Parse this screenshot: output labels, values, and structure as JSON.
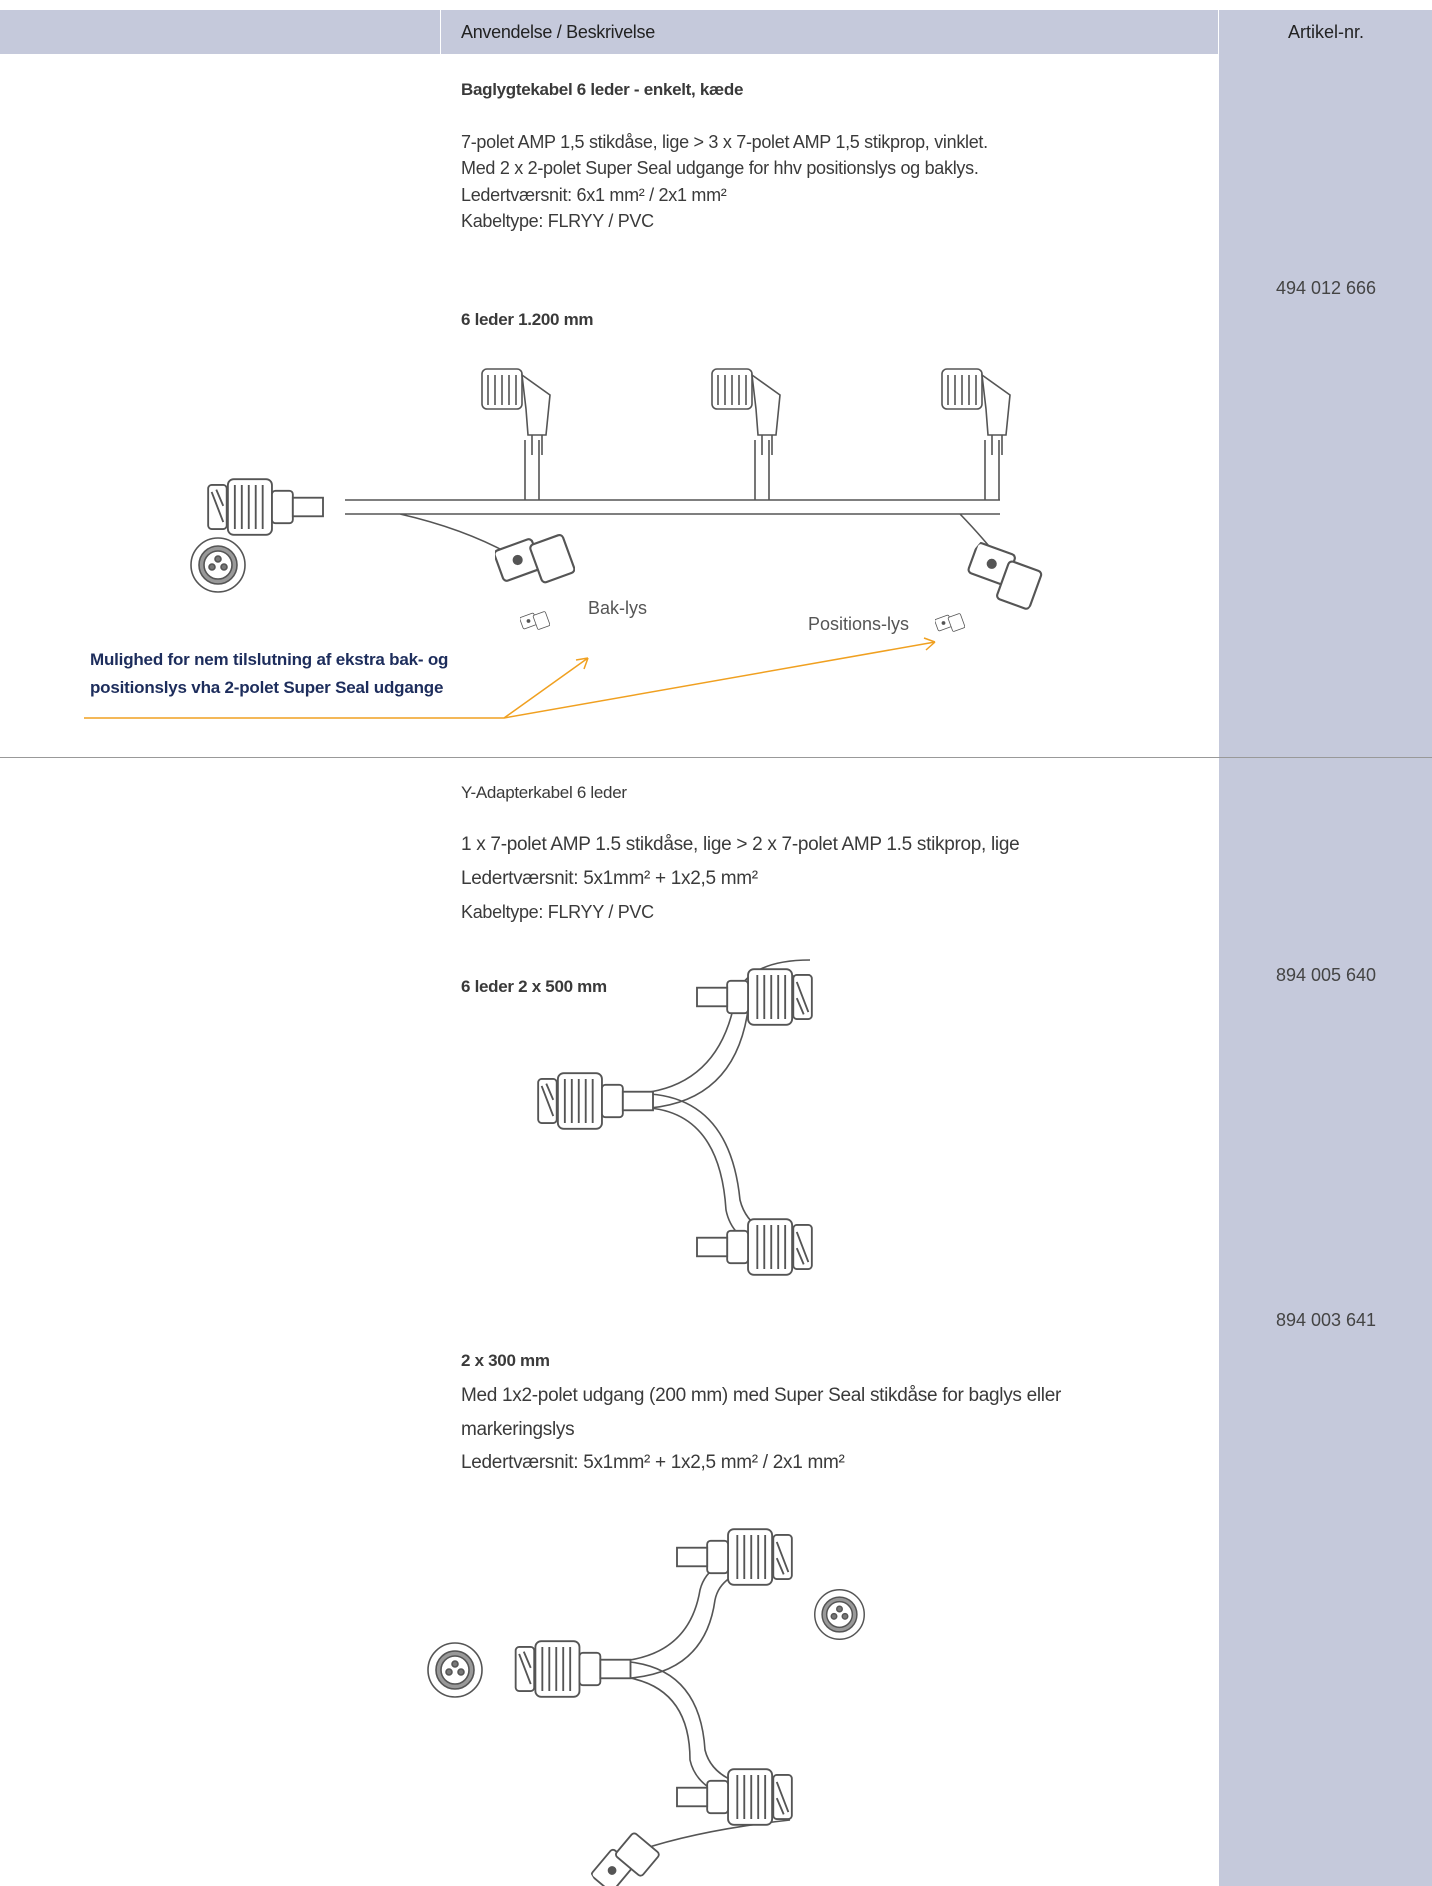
{
  "header": {
    "description": "Anvendelse / Beskrivelse",
    "article": "Artikel-nr."
  },
  "products": [
    {
      "title": "Baglygtekabel 6 leder - enkelt, kæde",
      "lines": [
        "7-polet AMP 1,5 stikdåse, lige > 3 x 7-polet AMP 1,5 stikprop, vinklet.",
        "Med 2 x 2-polet Super Seal udgange for hhv positionslys og baklys.",
        "Ledertværsnit: 6x1 mm² / 2x1 mm²",
        "Kabeltype: FLRYY / PVC"
      ],
      "variants": [
        {
          "name": "6 leder 1.200 mm",
          "article": "494 012 666"
        }
      ],
      "labels": [
        "Bak-lys",
        "Positions-lys"
      ],
      "callout": [
        "Mulighed for nem tilslutning af ekstra bak- og",
        "positionslys vha 2-polet Super Seal udgange"
      ]
    },
    {
      "title": "Y-Adapterkabel 6 leder",
      "lines": [
        "1 x 7-polet AMP 1.5 stikdåse, lige > 2 x 7-polet AMP 1.5 stikprop, lige",
        "Ledertværsnit: 5x1mm² + 1x2,5 mm²",
        "Kabeltype: FLRYY / PVC"
      ],
      "variants": [
        {
          "name": "6 leder 2 x 500 mm",
          "article": "894 005 640"
        },
        {
          "name": "2 x 300 mm",
          "lines": [
            "Med 1x2-polet udgang (200 mm) med Super Seal stikdåse for baglys eller",
            "markeringslys",
            "Ledertværsnit: 5x1mm² + 1x2,5 mm² / 2x1 mm²"
          ],
          "article": "894 003 641"
        }
      ]
    }
  ]
}
